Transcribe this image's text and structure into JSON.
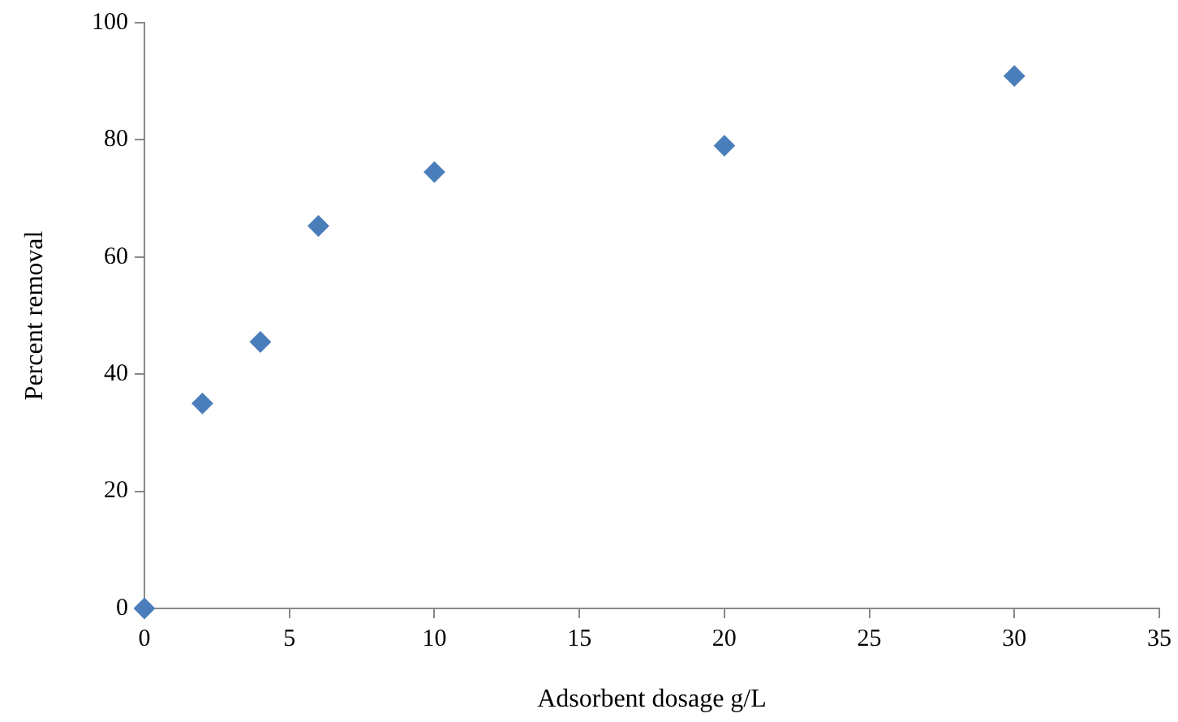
{
  "chart_data": {
    "type": "scatter",
    "xlabel": "Adsorbent dosage g/L",
    "ylabel": "Percent removal",
    "x": [
      0,
      2,
      4,
      6,
      10,
      20,
      30
    ],
    "values": [
      0,
      35,
      45.5,
      65.3,
      74.5,
      79,
      90.9
    ],
    "color": "#4a7ebb",
    "marker": "diamond",
    "xlim": [
      0,
      35
    ],
    "xticks": [
      0,
      5,
      10,
      15,
      20,
      25,
      30,
      35
    ],
    "ylim": [
      0,
      100
    ],
    "yticks": [
      0,
      20,
      40,
      60,
      80,
      100
    ]
  }
}
